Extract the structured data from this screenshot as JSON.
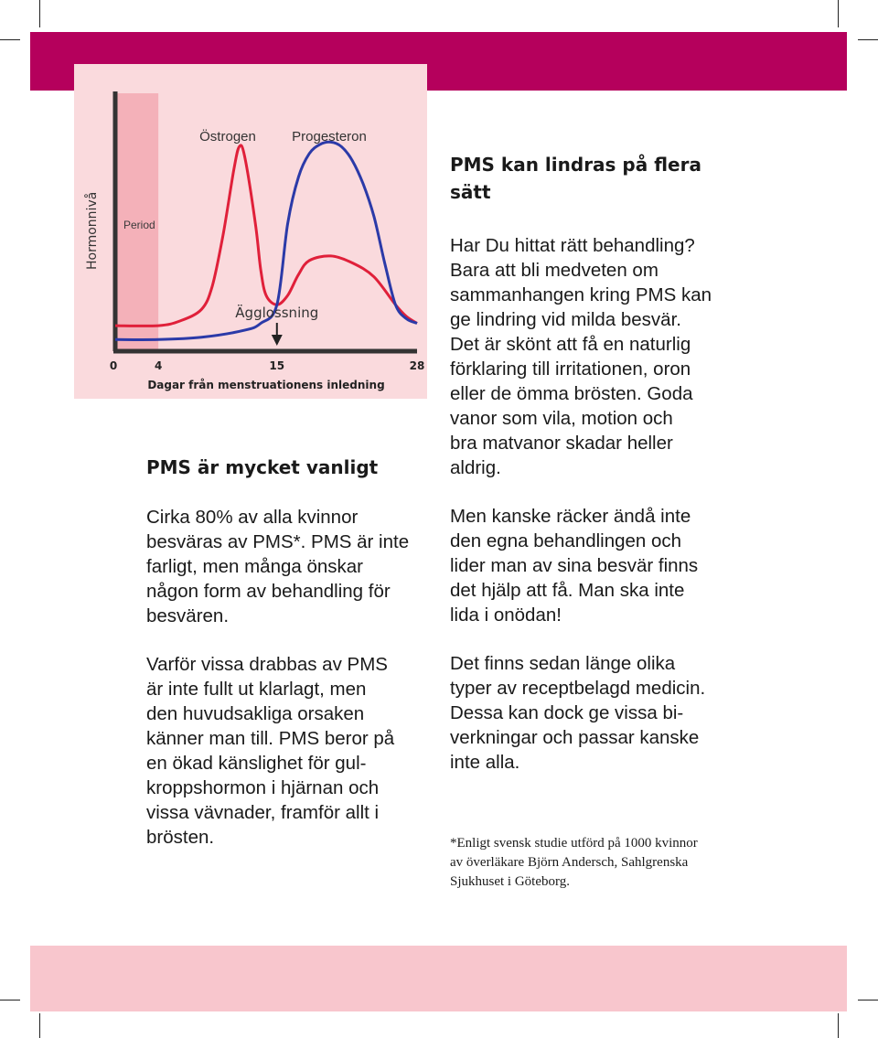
{
  "chart_data": {
    "type": "line",
    "y_axis_label": "Hormonnivå",
    "x_axis_label": "Dagar från menstruationens inledning",
    "x_tick_labels": [
      "0",
      "4",
      "15",
      "28"
    ],
    "xlim": [
      0,
      28
    ],
    "grid": false,
    "period_band": {
      "label": "Period",
      "start_day": 0,
      "end_day": 4
    },
    "annotation": {
      "label": "Ägglossning",
      "day": 15
    },
    "series": [
      {
        "name": "Östrogen",
        "color": "#e0203a",
        "x": [
          0,
          4,
          6,
          8,
          9,
          10,
          11,
          11.5,
          12,
          13,
          13.5,
          14,
          15,
          16,
          17,
          18,
          20,
          22,
          24,
          26,
          27,
          28
        ],
        "y": [
          1.1,
          1.1,
          1.3,
          1.8,
          2.8,
          5.0,
          7.8,
          8.8,
          8.4,
          5.5,
          3.5,
          2.4,
          2.0,
          2.4,
          3.3,
          3.9,
          4.1,
          3.8,
          3.2,
          2.0,
          1.5,
          1.2
        ]
      },
      {
        "name": "Progesteron",
        "color": "#2b3aa8",
        "x": [
          0,
          4,
          8,
          12,
          13.5,
          15,
          16,
          17,
          18,
          19,
          20,
          21,
          22,
          23,
          24,
          25,
          26,
          27,
          28
        ],
        "y": [
          0.5,
          0.5,
          0.6,
          0.9,
          1.2,
          2.0,
          5.5,
          7.5,
          8.5,
          8.9,
          9.0,
          8.8,
          8.2,
          7.2,
          5.8,
          3.8,
          2.0,
          1.4,
          1.2
        ]
      }
    ]
  },
  "left": {
    "heading": "PMS är mycket vanligt",
    "p1": [
      "Cirka 80% av alla kvinnor",
      "besväras av PMS*. PMS är inte",
      "farligt, men många önskar",
      "någon form av behandling för",
      "besvären."
    ],
    "p2": [
      "Varför vissa drabbas av PMS",
      "är inte fullt ut klarlagt, men",
      "den huvudsakliga orsaken",
      "känner man till. PMS beror på",
      "en ökad känslighet för gul-",
      "kroppshormon i hjärnan och",
      "vissa vävnader, framför allt i",
      "brösten."
    ]
  },
  "right": {
    "heading": [
      "PMS kan lindras på flera",
      "sätt"
    ],
    "p1": [
      "Har Du hittat rätt behandling?",
      "Bara att bli medveten om",
      "sammanhangen kring PMS kan",
      "ge lindring vid milda besvär.",
      "Det är skönt att få en naturlig",
      "förklaring till irritationen, oron",
      "eller de ömma brösten. Goda",
      "vanor som vila, motion och",
      "bra matvanor skadar heller",
      "aldrig."
    ],
    "p2": [
      "Men kanske räcker ändå inte",
      "den egna behandlingen och",
      "lider man av sina besvär finns",
      "det hjälp att få. Man ska inte",
      "lida i onödan!"
    ],
    "p3": [
      "Det finns sedan länge olika",
      "typer av receptbelagd medicin.",
      "Dessa kan dock ge vissa bi-",
      "verkningar och passar kanske",
      "inte alla."
    ]
  },
  "footnote": [
    " *Enligt svensk studie utförd på 1000 kvinnor",
    "av överläkare Björn Andersch, Sahlgrenska",
    "Sjukhuset i Göteborg."
  ],
  "colors": {
    "band_top": "#b5005c",
    "band_bottom": "#f8c6cd",
    "chart_bg": "#fadadd",
    "period_band": "#f4b1b9"
  }
}
